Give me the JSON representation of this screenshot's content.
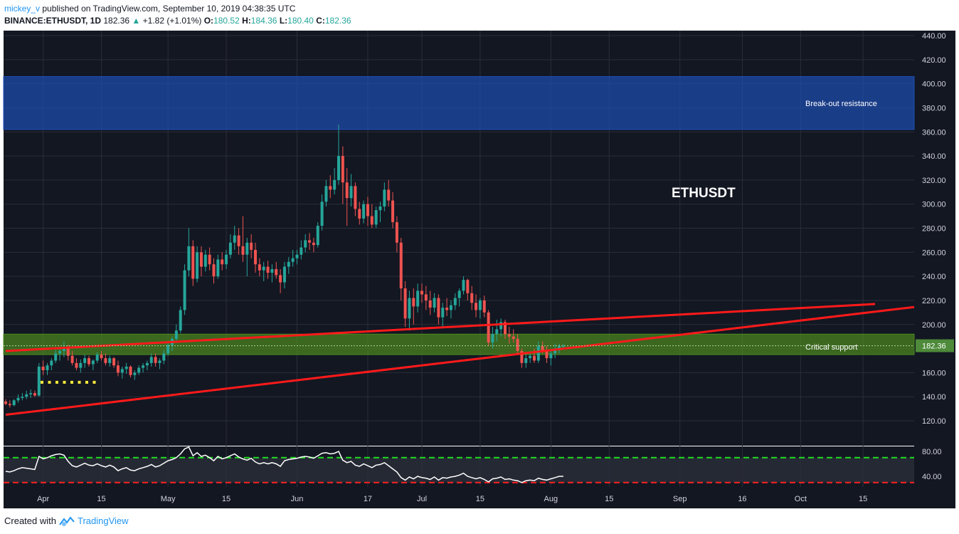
{
  "header": {
    "author": "mickey_v",
    "published_text": "published on TradingView.com, September 10, 2019 04:38:35 UTC",
    "symbol": "BINANCE:ETHUSDT, 1D",
    "last": "182.36",
    "change": "+1.82 (+1.01%)",
    "open_label": "O:",
    "open": "180.52",
    "high_label": "H:",
    "high": "184.36",
    "low_label": "L:",
    "low": "180.40",
    "close_label": "C:",
    "close": "182.36"
  },
  "footer": {
    "created_with": "Created with",
    "brand": "TradingView"
  },
  "chart_data": {
    "type": "candlestick",
    "symbol": "ETHUSDT",
    "interval": "1D",
    "ylim": [
      100,
      445
    ],
    "y_ticks": [
      "440.00",
      "420.00",
      "400.00",
      "380.00",
      "360.00",
      "340.00",
      "320.00",
      "300.00",
      "280.00",
      "260.00",
      "240.00",
      "220.00",
      "200.00",
      "180.00",
      "160.00",
      "140.00",
      "120.00"
    ],
    "x_ticks": [
      "Apr",
      "15",
      "May",
      "15",
      "Jun",
      "17",
      "Jul",
      "15",
      "Aug",
      "15",
      "Sep",
      "16",
      "Oct",
      "15"
    ],
    "last_price": "182.36",
    "annotations": [
      {
        "text": "ETHUSDT"
      },
      {
        "text": "Break-out resistance"
      },
      {
        "text": "Critical support"
      }
    ],
    "zones": [
      {
        "name": "break-out-resistance",
        "from": 362,
        "to": 406,
        "color": "#1e4fb4"
      },
      {
        "name": "critical-support",
        "from": 175,
        "to": 192,
        "color": "#4d8a1e"
      }
    ],
    "trendlines": [
      {
        "from": [
          "Mar 23",
          125
        ],
        "to": [
          "Oct 26",
          215
        ]
      },
      {
        "from": [
          "Mar 23",
          178
        ],
        "to": [
          "Oct 6",
          217
        ]
      }
    ],
    "candles": [
      [
        136,
        138,
        133,
        134
      ],
      [
        134,
        137,
        131,
        133
      ],
      [
        133,
        138,
        132,
        137
      ],
      [
        137,
        142,
        135,
        139
      ],
      [
        139,
        143,
        137,
        140
      ],
      [
        140,
        145,
        138,
        142
      ],
      [
        142,
        146,
        139,
        143
      ],
      [
        143,
        145,
        140,
        141
      ],
      [
        141,
        168,
        140,
        165
      ],
      [
        165,
        170,
        158,
        162
      ],
      [
        162,
        168,
        158,
        166
      ],
      [
        166,
        172,
        162,
        170
      ],
      [
        170,
        179,
        168,
        176
      ],
      [
        176,
        181,
        170,
        178
      ],
      [
        178,
        186,
        173,
        180
      ],
      [
        180,
        183,
        170,
        174
      ],
      [
        174,
        178,
        166,
        168
      ],
      [
        168,
        172,
        162,
        164
      ],
      [
        164,
        171,
        160,
        168
      ],
      [
        168,
        175,
        164,
        172
      ],
      [
        172,
        174,
        165,
        167
      ],
      [
        167,
        171,
        162,
        170
      ],
      [
        170,
        177,
        168,
        175
      ],
      [
        175,
        178,
        170,
        172
      ],
      [
        172,
        176,
        166,
        168
      ],
      [
        168,
        174,
        165,
        172
      ],
      [
        172,
        173,
        164,
        166
      ],
      [
        166,
        170,
        157,
        160
      ],
      [
        160,
        165,
        155,
        163
      ],
      [
        163,
        168,
        159,
        165
      ],
      [
        165,
        166,
        156,
        158
      ],
      [
        158,
        162,
        154,
        160
      ],
      [
        160,
        166,
        158,
        164
      ],
      [
        164,
        168,
        160,
        166
      ],
      [
        166,
        170,
        162,
        168
      ],
      [
        168,
        176,
        165,
        173
      ],
      [
        173,
        176,
        165,
        168
      ],
      [
        168,
        172,
        163,
        170
      ],
      [
        170,
        179,
        167,
        176
      ],
      [
        176,
        186,
        174,
        183
      ],
      [
        183,
        190,
        178,
        188
      ],
      [
        188,
        200,
        186,
        195
      ],
      [
        195,
        215,
        193,
        212
      ],
      [
        212,
        250,
        208,
        245
      ],
      [
        245,
        280,
        240,
        265
      ],
      [
        265,
        270,
        232,
        238
      ],
      [
        238,
        265,
        235,
        260
      ],
      [
        260,
        265,
        240,
        248
      ],
      [
        248,
        262,
        244,
        258
      ],
      [
        258,
        264,
        245,
        250
      ],
      [
        250,
        255,
        234,
        240
      ],
      [
        240,
        258,
        238,
        254
      ],
      [
        254,
        260,
        245,
        250
      ],
      [
        250,
        262,
        246,
        258
      ],
      [
        258,
        275,
        255,
        268
      ],
      [
        268,
        282,
        262,
        274
      ],
      [
        274,
        280,
        258,
        265
      ],
      [
        265,
        290,
        252,
        258
      ],
      [
        258,
        272,
        240,
        268
      ],
      [
        268,
        275,
        255,
        262
      ],
      [
        262,
        268,
        243,
        250
      ],
      [
        250,
        255,
        240,
        245
      ],
      [
        245,
        252,
        236,
        248
      ],
      [
        248,
        253,
        238,
        243
      ],
      [
        243,
        250,
        235,
        246
      ],
      [
        246,
        252,
        238,
        241
      ],
      [
        241,
        246,
        226,
        235
      ],
      [
        235,
        252,
        230,
        248
      ],
      [
        248,
        256,
        242,
        252
      ],
      [
        252,
        262,
        248,
        255
      ],
      [
        255,
        262,
        250,
        258
      ],
      [
        258,
        270,
        254,
        264
      ],
      [
        264,
        275,
        260,
        270
      ],
      [
        270,
        276,
        262,
        268
      ],
      [
        268,
        272,
        260,
        266
      ],
      [
        266,
        285,
        264,
        282
      ],
      [
        282,
        308,
        278,
        302
      ],
      [
        302,
        320,
        298,
        315
      ],
      [
        315,
        324,
        305,
        312
      ],
      [
        312,
        330,
        308,
        320
      ],
      [
        320,
        366,
        316,
        340
      ],
      [
        340,
        348,
        300,
        318
      ],
      [
        318,
        330,
        282,
        305
      ],
      [
        305,
        325,
        298,
        315
      ],
      [
        315,
        318,
        290,
        296
      ],
      [
        296,
        302,
        283,
        288
      ],
      [
        288,
        303,
        284,
        300
      ],
      [
        300,
        306,
        282,
        290
      ],
      [
        290,
        300,
        280,
        283
      ],
      [
        283,
        298,
        280,
        295
      ],
      [
        295,
        302,
        285,
        298
      ],
      [
        298,
        318,
        294,
        312
      ],
      [
        312,
        320,
        298,
        303
      ],
      [
        303,
        310,
        280,
        285
      ],
      [
        285,
        290,
        260,
        268
      ],
      [
        268,
        272,
        220,
        230
      ],
      [
        230,
        236,
        198,
        205
      ],
      [
        205,
        228,
        195,
        222
      ],
      [
        222,
        230,
        200,
        215
      ],
      [
        215,
        234,
        210,
        228
      ],
      [
        228,
        234,
        218,
        225
      ],
      [
        225,
        232,
        212,
        220
      ],
      [
        220,
        228,
        208,
        214
      ],
      [
        214,
        226,
        210,
        222
      ],
      [
        222,
        225,
        200,
        206
      ],
      [
        206,
        218,
        198,
        214
      ],
      [
        214,
        222,
        207,
        212
      ],
      [
        212,
        220,
        205,
        216
      ],
      [
        216,
        226,
        212,
        222
      ],
      [
        222,
        230,
        215,
        228
      ],
      [
        228,
        240,
        225,
        237
      ],
      [
        237,
        238,
        220,
        226
      ],
      [
        226,
        232,
        212,
        218
      ],
      [
        218,
        225,
        206,
        212
      ],
      [
        212,
        222,
        205,
        220
      ],
      [
        220,
        224,
        206,
        210
      ],
      [
        210,
        212,
        182,
        185
      ],
      [
        185,
        198,
        180,
        192
      ],
      [
        192,
        204,
        186,
        196
      ],
      [
        196,
        205,
        190,
        202
      ],
      [
        202,
        204,
        188,
        192
      ],
      [
        192,
        198,
        184,
        190
      ],
      [
        190,
        196,
        185,
        188
      ],
      [
        188,
        192,
        175,
        178
      ],
      [
        178,
        180,
        164,
        168
      ],
      [
        168,
        176,
        164,
        172
      ],
      [
        172,
        178,
        168,
        174
      ],
      [
        174,
        180,
        168,
        170
      ],
      [
        170,
        186,
        168,
        182
      ],
      [
        182,
        186,
        176,
        178
      ],
      [
        178,
        182,
        168,
        172
      ],
      [
        172,
        178,
        166,
        176
      ],
      [
        176,
        184,
        172,
        180
      ],
      [
        180,
        184,
        176,
        182
      ],
      [
        182,
        184,
        180,
        182
      ]
    ],
    "rsi": {
      "ylim": [
        25,
        95
      ],
      "y_ticks": [
        "80.00",
        "40.00"
      ],
      "levels": [
        70,
        30
      ],
      "values": [
        48,
        47,
        49,
        52,
        54,
        53,
        52,
        51,
        72,
        68,
        70,
        73,
        75,
        76,
        74,
        64,
        57,
        55,
        58,
        61,
        58,
        57,
        60,
        57,
        55,
        58,
        55,
        49,
        52,
        54,
        50,
        49,
        52,
        54,
        56,
        59,
        55,
        57,
        61,
        65,
        67,
        70,
        76,
        84,
        87,
        73,
        78,
        72,
        74,
        70,
        65,
        72,
        68,
        70,
        73,
        76,
        71,
        68,
        66,
        69,
        63,
        60,
        62,
        60,
        62,
        60,
        56,
        65,
        67,
        68,
        69,
        71,
        72,
        71,
        69,
        73,
        77,
        78,
        76,
        77,
        80,
        66,
        62,
        64,
        58,
        56,
        60,
        57,
        54,
        58,
        59,
        62,
        57,
        52,
        47,
        38,
        34,
        39,
        36,
        40,
        38,
        37,
        35,
        39,
        34,
        38,
        37,
        39,
        40,
        42,
        45,
        40,
        38,
        36,
        38,
        35,
        31,
        36,
        37,
        39,
        35,
        36,
        34,
        33,
        30,
        33,
        34,
        33,
        37,
        35,
        34,
        36,
        38,
        40,
        40
      ]
    }
  }
}
